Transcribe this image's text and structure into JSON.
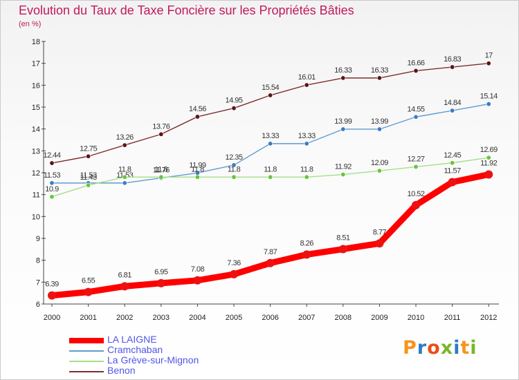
{
  "title": "Evolution du Taux de Taxe Foncière sur les Propriétés Bâties",
  "unit": "(en %)",
  "chart_data": {
    "type": "line",
    "title": "Evolution du Taux de Taxe Foncière sur les Propriétés Bâties",
    "ylabel": "(en %)",
    "xlabel": "",
    "ylim": [
      6,
      18
    ],
    "yticks": [
      6,
      7,
      8,
      9,
      10,
      11,
      12,
      13,
      14,
      15,
      16,
      17,
      18
    ],
    "x": [
      "2000",
      "2001",
      "2002",
      "2003",
      "2004",
      "2005",
      "2006",
      "2007",
      "2008",
      "2009",
      "2010",
      "2011",
      "2012"
    ],
    "series": [
      {
        "name": "LA LAIGNE",
        "color": "#ff0000",
        "dot": "#ee1111",
        "values": [
          6.39,
          6.55,
          6.81,
          6.95,
          7.08,
          7.36,
          7.87,
          8.26,
          8.51,
          8.77,
          10.52,
          11.57,
          11.92
        ],
        "labels": [
          "6.39",
          "6.55",
          "6.81",
          "6.95",
          "7.08",
          "7.36",
          "7.87",
          "8.26",
          "8.51",
          "8.77",
          "10.52",
          "11.57",
          "11.92"
        ]
      },
      {
        "name": "Cramchaban",
        "color": "#5e9bd0",
        "dot": "#3a7dc1",
        "values": [
          11.53,
          11.53,
          11.53,
          11.76,
          11.99,
          12.35,
          13.33,
          13.33,
          13.99,
          13.99,
          14.55,
          14.84,
          15.14
        ],
        "labels": [
          "11.53",
          "11.53",
          "11.53",
          "11.76",
          "11.99",
          "12.35",
          "13.33",
          "13.33",
          "13.99",
          "13.99",
          "14.55",
          "14.84",
          "15.14"
        ]
      },
      {
        "name": "La Grève-sur-Mignon",
        "color": "#a3e085",
        "dot": "#66c63c",
        "values": [
          10.9,
          11.43,
          11.8,
          11.8,
          11.8,
          11.8,
          11.8,
          11.8,
          11.92,
          12.09,
          12.27,
          12.45,
          12.69
        ],
        "labels": [
          "10.9",
          "11.43",
          "11.8",
          "11.8",
          "11.8",
          "11.8",
          "11.8",
          "11.8",
          "11.92",
          "12.09",
          "12.27",
          "12.45",
          "12.69"
        ]
      },
      {
        "name": "Benon",
        "color": "#7e2e2e",
        "dot": "#5c1414",
        "values": [
          12.44,
          12.75,
          13.26,
          13.76,
          14.56,
          14.95,
          15.54,
          16.01,
          16.33,
          16.33,
          16.66,
          16.83,
          17
        ],
        "labels": [
          "12.44",
          "12.75",
          "13.26",
          "13.76",
          "14.56",
          "14.95",
          "15.54",
          "16.01",
          "16.33",
          "16.33",
          "16.66",
          "16.83",
          "17"
        ]
      }
    ],
    "legend": "bottom-left",
    "grid": false
  },
  "logo": {
    "text": "Proxiti",
    "letters": [
      "P",
      "r",
      "o",
      "x",
      "i",
      "t",
      "i"
    ],
    "colors": [
      "#f7941d",
      "#2e7cc4",
      "#e94e1b",
      "#79b62b",
      "#2e7cc4",
      "#f7941d",
      "#79b62b"
    ]
  }
}
